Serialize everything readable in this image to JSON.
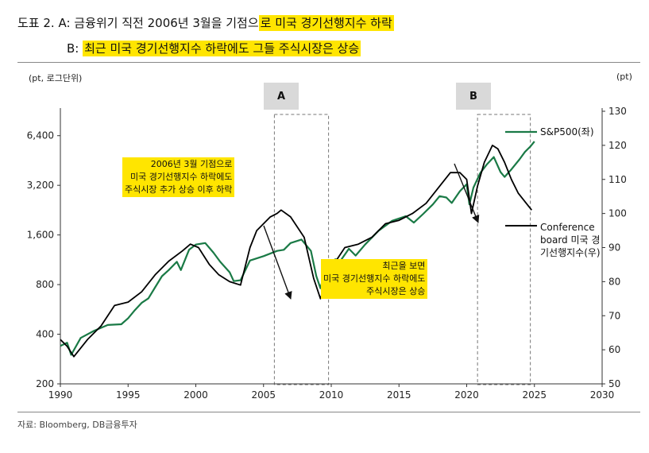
{
  "title": {
    "line1_prefix": "도표 2. A: 금융위기 직전 2006년 3월을 기점으",
    "line1_highlight": "로 미국 경기선행지수 하락",
    "line2_prefix": "B: ",
    "line2_highlight": "최근 미국 경기선행지수 하락에도 그들 주식시장은 상승"
  },
  "source": "자료: Bloomberg, DB금융투자",
  "annotations": {
    "a_lines": [
      "2006년 3월 기점으로",
      "미국 경기선행지수 하락에도",
      "주식시장 추가 상승 이후 하락"
    ],
    "b_lines": [
      "최근을 보면",
      "미국 경기선행지수 하락에도",
      "주식시장은 상승"
    ]
  },
  "colors": {
    "sp500": "#1a7a46",
    "lei": "#000000",
    "highlight": "#ffe500",
    "box": "#d9d9d9"
  },
  "chart_data": {
    "type": "line",
    "left_axis_label": "(pt, 로그단위)",
    "right_axis_label": "(pt)",
    "left_scale": "log2",
    "left_ticks": [
      200,
      400,
      800,
      1600,
      3200,
      6400
    ],
    "left_tick_labels": [
      "200",
      "400",
      "800",
      "1,600",
      "3,200",
      "6,400"
    ],
    "left_ylim": [
      200,
      9000
    ],
    "right_ticks": [
      50,
      60,
      70,
      80,
      90,
      100,
      110,
      120,
      130
    ],
    "right_ylim": [
      50,
      130
    ],
    "x_ticks": [
      1990,
      1995,
      2000,
      2005,
      2010,
      2015,
      2020,
      2025,
      2030
    ],
    "xlim": [
      1990,
      2030
    ],
    "grid": false,
    "periods": [
      {
        "label": "A",
        "start": 2005.8,
        "end": 2009.8
      },
      {
        "label": "B",
        "start": 2020.8,
        "end": 2024.7
      }
    ],
    "series": [
      {
        "name": "S&P500(좌)",
        "axis": "left",
        "x": [
          1990.0,
          1990.5,
          1990.8,
          1991.5,
          1992.5,
          1993.5,
          1994.5,
          1995.0,
          1995.5,
          1996.0,
          1996.5,
          1997.0,
          1997.5,
          1998.0,
          1998.6,
          1998.9,
          1999.5,
          2000.0,
          2000.7,
          2001.3,
          2001.8,
          2002.5,
          2002.8,
          2003.3,
          2004.0,
          2005.0,
          2006.0,
          2006.5,
          2007.0,
          2007.8,
          2008.5,
          2008.9,
          2009.2,
          2009.6,
          2010.3,
          2010.7,
          2011.3,
          2011.8,
          2012.5,
          2013.5,
          2014.5,
          2015.5,
          2016.1,
          2016.8,
          2017.5,
          2018.0,
          2018.5,
          2018.9,
          2019.5,
          2020.0,
          2020.2,
          2020.5,
          2021.0,
          2021.5,
          2022.0,
          2022.5,
          2022.8,
          2023.3,
          2023.9,
          2024.3,
          2024.7,
          2025.0
        ],
        "values": [
          340,
          355,
          300,
          380,
          420,
          455,
          460,
          500,
          560,
          620,
          660,
          770,
          900,
          980,
          1100,
          980,
          1300,
          1400,
          1430,
          1250,
          1100,
          950,
          840,
          850,
          1120,
          1190,
          1280,
          1300,
          1430,
          1500,
          1280,
          900,
          760,
          1000,
          1140,
          1120,
          1320,
          1200,
          1400,
          1700,
          1950,
          2080,
          1900,
          2150,
          2450,
          2750,
          2700,
          2500,
          2950,
          3250,
          2450,
          3100,
          3800,
          4300,
          4750,
          3850,
          3600,
          4000,
          4600,
          5100,
          5500,
          5900
        ]
      },
      {
        "name": "Conference board 미국 경기선행지수(우)",
        "axis": "right",
        "x": [
          1990.0,
          1990.5,
          1991.0,
          1992.0,
          1993.0,
          1994.0,
          1995.0,
          1996.0,
          1997.0,
          1998.0,
          1999.0,
          1999.6,
          2000.2,
          2001.0,
          2001.7,
          2002.5,
          2003.3,
          2004.0,
          2004.5,
          2005.5,
          2006.0,
          2006.3,
          2007.0,
          2008.0,
          2008.7,
          2009.2,
          2010.0,
          2011.0,
          2012.0,
          2013.0,
          2014.0,
          2015.0,
          2016.0,
          2017.0,
          2018.0,
          2018.8,
          2019.5,
          2020.0,
          2020.35,
          2020.8,
          2021.3,
          2021.9,
          2022.3,
          2022.8,
          2023.3,
          2023.8,
          2024.4,
          2024.8
        ],
        "values": [
          63,
          61,
          58,
          63,
          67,
          73,
          74,
          77,
          82,
          86,
          89,
          91,
          90,
          85,
          82,
          80,
          79,
          90,
          95,
          99,
          100,
          101,
          99,
          93,
          81,
          75,
          84,
          90,
          91,
          93,
          97,
          98,
          100,
          103,
          108,
          112,
          112,
          110,
          100,
          108,
          115,
          120,
          119,
          115,
          110,
          106,
          103,
          101
        ]
      }
    ]
  }
}
